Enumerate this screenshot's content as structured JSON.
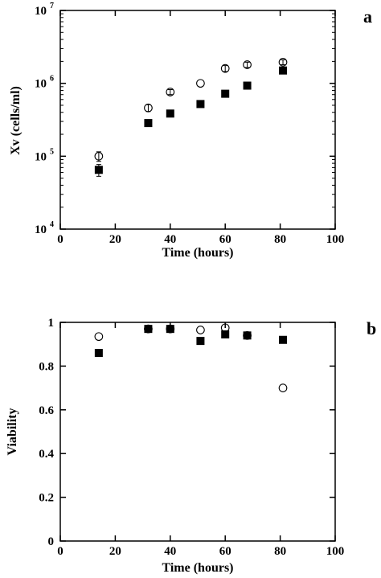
{
  "chart_data": [
    {
      "type": "scatter",
      "panel_label": "a",
      "xlabel": "Time  (hours)",
      "ylabel": "Xv  (cells/ml)",
      "xlim": [
        0,
        100
      ],
      "ylim": [
        10000,
        10000000
      ],
      "yscale": "log",
      "x_ticks": [
        0,
        20,
        40,
        60,
        80,
        100
      ],
      "y_ticks": [
        {
          "value": 10000,
          "base": "10",
          "exp": "4"
        },
        {
          "value": 100000,
          "base": "10",
          "exp": "5"
        },
        {
          "value": 1000000,
          "base": "10",
          "exp": "6"
        },
        {
          "value": 10000000,
          "base": "10",
          "exp": "7"
        }
      ],
      "grid": false,
      "series": [
        {
          "marker": "open-circle",
          "color": "#000000",
          "points": [
            {
              "x": 14,
              "y": 100000,
              "err": 15000
            },
            {
              "x": 32,
              "y": 460000,
              "err": 50000
            },
            {
              "x": 40,
              "y": 760000,
              "err": 60000
            },
            {
              "x": 51,
              "y": 1000000,
              "err": 0
            },
            {
              "x": 60,
              "y": 1600000,
              "err": 150000
            },
            {
              "x": 68,
              "y": 1800000,
              "err": 150000
            },
            {
              "x": 81,
              "y": 1950000,
              "err": 150000
            }
          ]
        },
        {
          "marker": "filled-square",
          "color": "#000000",
          "points": [
            {
              "x": 14,
              "y": 65000,
              "err": 12000
            },
            {
              "x": 32,
              "y": 285000,
              "err": 20000
            },
            {
              "x": 40,
              "y": 385000,
              "err": 30000
            },
            {
              "x": 51,
              "y": 520000,
              "err": 0
            },
            {
              "x": 60,
              "y": 720000,
              "err": 0
            },
            {
              "x": 68,
              "y": 930000,
              "err": 0
            },
            {
              "x": 81,
              "y": 1500000,
              "err": 0
            }
          ]
        }
      ]
    },
    {
      "type": "scatter",
      "panel_label": "b",
      "xlabel": "Time  (hours)",
      "ylabel": "Viability",
      "xlim": [
        0,
        100
      ],
      "ylim": [
        0,
        1
      ],
      "yscale": "linear",
      "x_ticks": [
        0,
        20,
        40,
        60,
        80,
        100
      ],
      "y_ticks": [
        {
          "value": 0,
          "label": "0"
        },
        {
          "value": 0.2,
          "label": "0.2"
        },
        {
          "value": 0.4,
          "label": "0.4"
        },
        {
          "value": 0.6,
          "label": "0.6"
        },
        {
          "value": 0.8,
          "label": "0.8"
        },
        {
          "value": 1,
          "label": "1"
        }
      ],
      "grid": false,
      "series": [
        {
          "marker": "open-circle",
          "color": "#000000",
          "points": [
            {
              "x": 14,
              "y": 0.935
            },
            {
              "x": 32,
              "y": 0.97
            },
            {
              "x": 40,
              "y": 0.97
            },
            {
              "x": 51,
              "y": 0.965
            },
            {
              "x": 60,
              "y": 0.975
            },
            {
              "x": 68,
              "y": 0.94
            },
            {
              "x": 81,
              "y": 0.7
            }
          ]
        },
        {
          "marker": "filled-square",
          "color": "#000000",
          "points": [
            {
              "x": 14,
              "y": 0.86
            },
            {
              "x": 32,
              "y": 0.97
            },
            {
              "x": 40,
              "y": 0.97
            },
            {
              "x": 51,
              "y": 0.915
            },
            {
              "x": 60,
              "y": 0.945
            },
            {
              "x": 68,
              "y": 0.94
            },
            {
              "x": 81,
              "y": 0.92
            }
          ]
        }
      ]
    }
  ]
}
